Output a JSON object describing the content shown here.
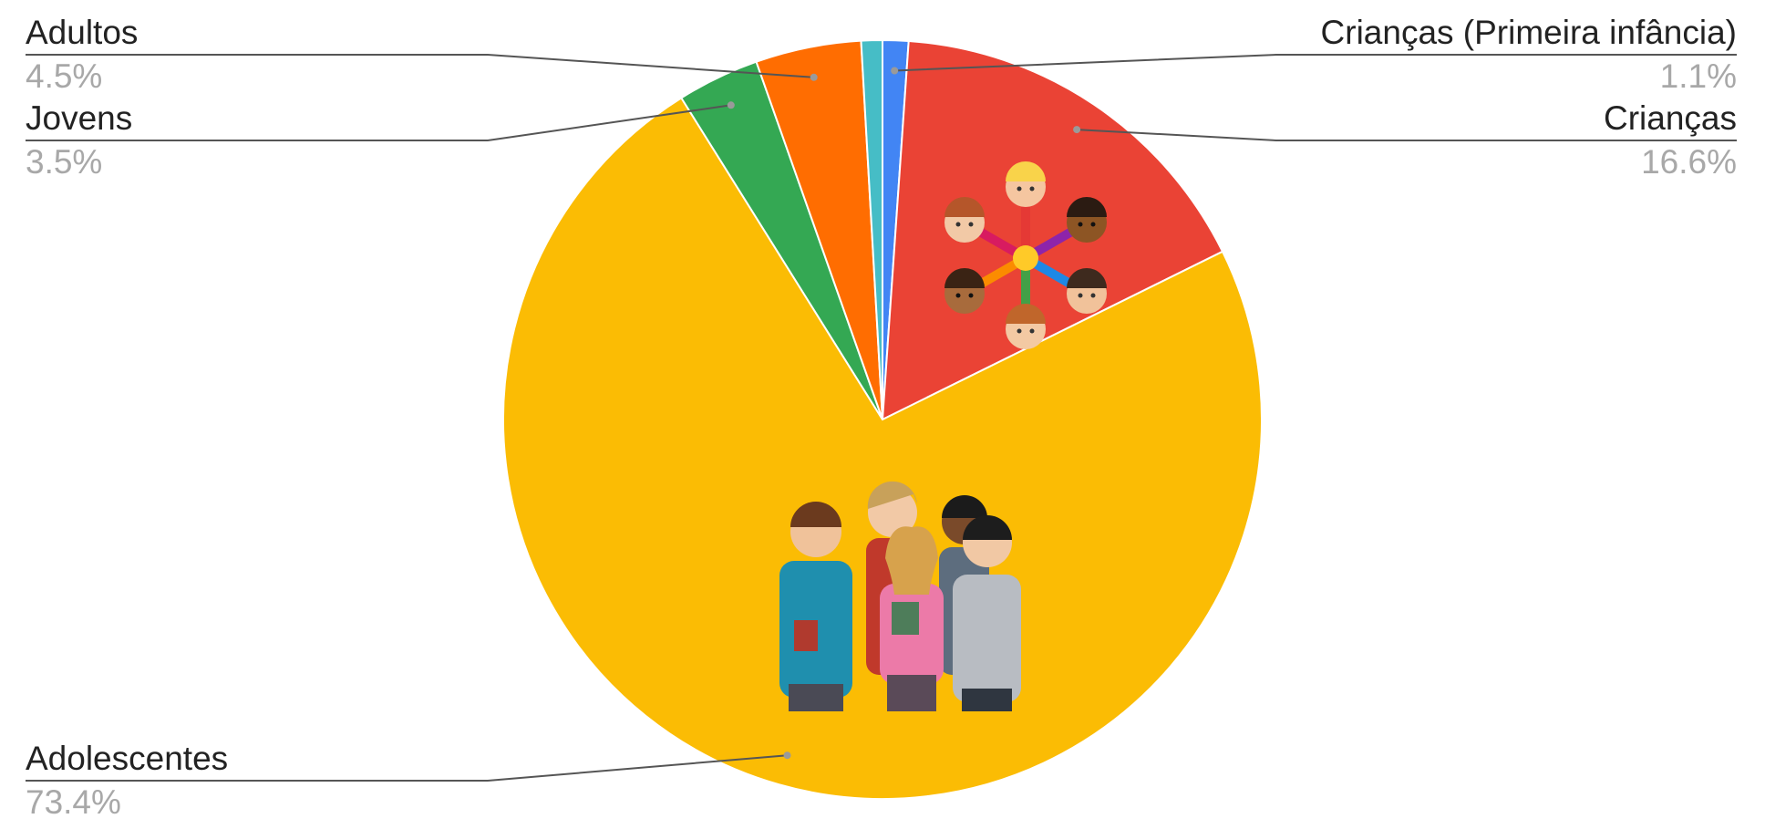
{
  "chart_data": {
    "type": "pie",
    "title": "",
    "slices": [
      {
        "label": "Crianças (Primeira infância)",
        "value": 1.1,
        "display": "1.1%",
        "color": "#4285f4",
        "legend_side": "right",
        "legend_row": 0
      },
      {
        "label": "Crianças",
        "value": 16.6,
        "display": "16.6%",
        "color": "#ea4335",
        "legend_side": "right",
        "legend_row": 1
      },
      {
        "label": "Adolescentes",
        "value": 73.4,
        "display": "73.4%",
        "color": "#fbbc04",
        "legend_side": "left",
        "legend_row": 2
      },
      {
        "label": "Jovens",
        "value": 3.5,
        "display": "3.5%",
        "color": "#34a853",
        "legend_side": "left",
        "legend_row": 1
      },
      {
        "label": "Adultos",
        "value": 4.5,
        "display": "4.5%",
        "color": "#ff6d01",
        "legend_side": "left",
        "legend_row": 0
      },
      {
        "label": "",
        "value": 0.9,
        "display": "",
        "color": "#46bdc6",
        "legend_side": "none",
        "legend_row": -1
      }
    ],
    "start_angle": "12 o'clock",
    "direction": "clockwise",
    "legend_position": "labels outside with leader lines"
  },
  "illustrations": [
    {
      "name": "children-circle-illustration",
      "slice": "Crianças"
    },
    {
      "name": "teenagers-group-illustration",
      "slice": "Adolescentes"
    }
  ]
}
